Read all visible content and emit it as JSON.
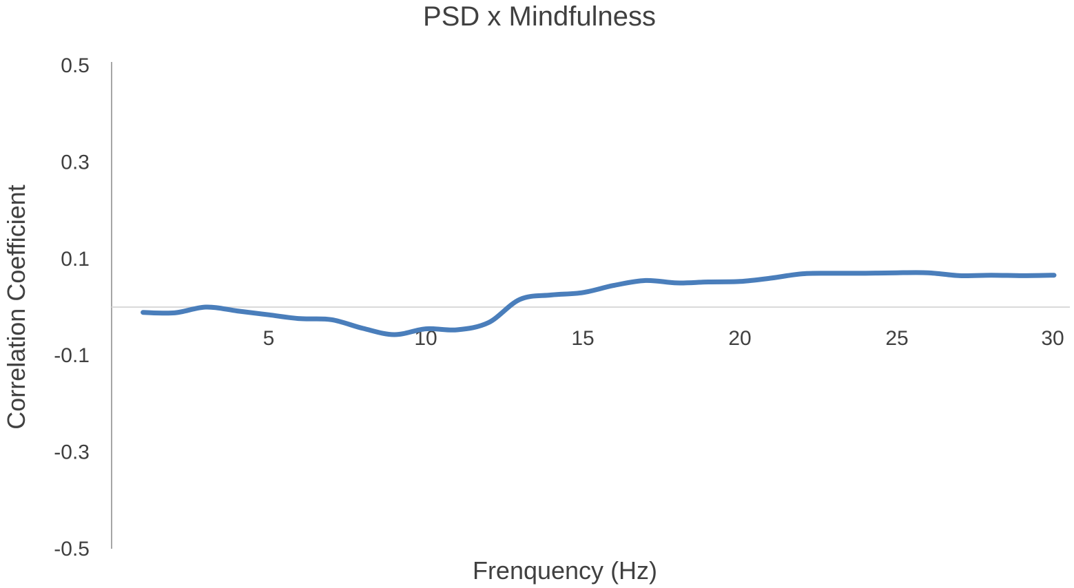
{
  "chart_data": {
    "type": "line",
    "title": "PSD x Mindfulness",
    "xlabel": "Frenquency (Hz)",
    "ylabel": "Correlation Coefficient",
    "xlim": [
      0,
      30
    ],
    "ylim": [
      -0.5,
      0.5
    ],
    "x_ticks": [
      5,
      10,
      15,
      20,
      25,
      30
    ],
    "y_ticks": [
      0.5,
      0.3,
      0.1,
      -0.1,
      -0.3,
      -0.5
    ],
    "y_tick_labels": [
      "0.5",
      "0.3",
      "0.1",
      "-0.1",
      "-0.3",
      "-0.5"
    ],
    "grid": false,
    "legend": "none",
    "series": [
      {
        "color": "#4a7ebb",
        "x": [
          1,
          2,
          3,
          4,
          5,
          6,
          7,
          8,
          9,
          10,
          11,
          12,
          13,
          14,
          15,
          16,
          17,
          18,
          19,
          20,
          21,
          22,
          23,
          24,
          25,
          26,
          27,
          28,
          29,
          30
        ],
        "y": [
          -0.011,
          -0.012,
          0.0,
          -0.008,
          -0.016,
          -0.024,
          -0.026,
          -0.044,
          -0.057,
          -0.045,
          -0.047,
          -0.032,
          0.016,
          0.025,
          0.03,
          0.045,
          0.055,
          0.05,
          0.052,
          0.053,
          0.06,
          0.069,
          0.07,
          0.07,
          0.071,
          0.071,
          0.065,
          0.066,
          0.065,
          0.066
        ]
      }
    ]
  }
}
